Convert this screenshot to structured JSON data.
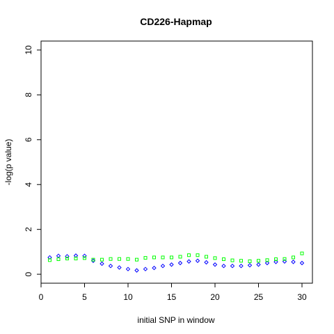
{
  "chart_data": {
    "type": "scatter",
    "title": "CD226-Hapmap",
    "xlabel": "initial SNP in window",
    "ylabel": "-log(p value)",
    "xlim": [
      0,
      31.2
    ],
    "ylim": [
      -0.4,
      10.4
    ],
    "x_ticks": [
      0,
      5,
      10,
      15,
      20,
      25,
      30
    ],
    "y_ticks": [
      0,
      2,
      4,
      6,
      8,
      10
    ],
    "grid": false,
    "legend": "none",
    "x": [
      1,
      2,
      3,
      4,
      5,
      6,
      7,
      8,
      9,
      10,
      11,
      12,
      13,
      14,
      15,
      16,
      17,
      18,
      19,
      20,
      21,
      22,
      23,
      24,
      25,
      26,
      27,
      28,
      29,
      30
    ],
    "series": [
      {
        "color": "#0000ff",
        "marker": "diamond",
        "values": [
          0.75,
          0.82,
          0.8,
          0.83,
          0.82,
          0.6,
          0.47,
          0.37,
          0.3,
          0.23,
          0.17,
          0.23,
          0.28,
          0.37,
          0.43,
          0.5,
          0.57,
          0.6,
          0.53,
          0.43,
          0.37,
          0.37,
          0.37,
          0.4,
          0.43,
          0.5,
          0.55,
          0.57,
          0.55,
          0.5
        ]
      },
      {
        "color": "#00ff00",
        "marker": "square",
        "values": [
          0.63,
          0.67,
          0.7,
          0.7,
          0.72,
          0.65,
          0.65,
          0.68,
          0.68,
          0.68,
          0.65,
          0.73,
          0.75,
          0.75,
          0.75,
          0.78,
          0.85,
          0.85,
          0.78,
          0.72,
          0.67,
          0.62,
          0.6,
          0.58,
          0.6,
          0.63,
          0.67,
          0.68,
          0.75,
          0.93
        ]
      }
    ]
  }
}
